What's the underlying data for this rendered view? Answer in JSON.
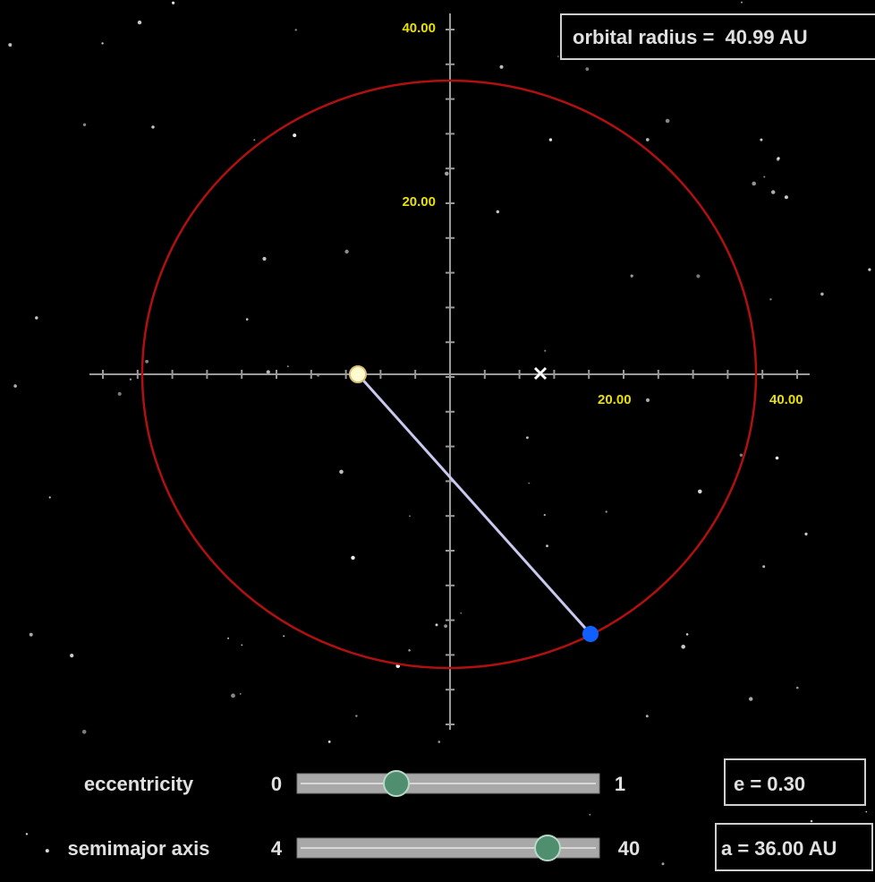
{
  "axes": {
    "y_labels": [
      "40.00",
      "20.00"
    ],
    "x_labels": [
      "20.00",
      "40.00"
    ]
  },
  "readout": "orbital radius =  40.99 AU",
  "controls": [
    {
      "label": "eccentricity",
      "min": "0",
      "max": "1",
      "value": "e = 0.30"
    },
    {
      "label": "semimajor axis",
      "min": "4",
      "max": "40",
      "value": "a = 36.00 AU"
    }
  ]
}
